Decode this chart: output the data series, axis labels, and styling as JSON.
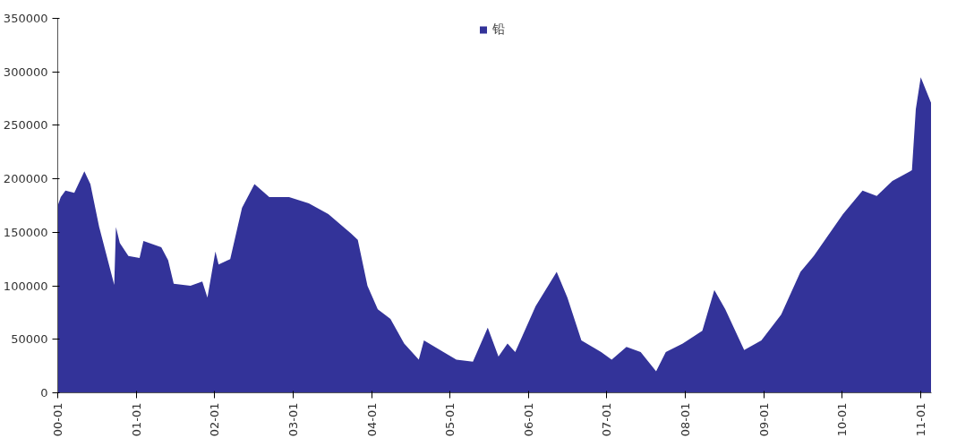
{
  "chart_data": {
    "type": "area",
    "x": [
      "2000-01-01",
      "2000-01-15",
      "2000-02-06",
      "2000-03-18",
      "2000-05-04",
      "2000-06-01",
      "2000-07-12",
      "2000-09-20",
      "2000-09-28",
      "2000-10-16",
      "2000-11-25",
      "2001-01-16",
      "2001-02-03",
      "2001-04-27",
      "2001-05-29",
      "2001-06-24",
      "2001-09-10",
      "2001-11-04",
      "2001-11-28",
      "2002-01-04",
      "2002-01-19",
      "2002-03-14",
      "2002-05-08",
      "2002-07-05",
      "2002-09-12",
      "2002-12-13",
      "2003-03-15",
      "2003-06-14",
      "2003-09-27",
      "2003-10-29",
      "2003-12-13",
      "2004-01-30",
      "2004-03-29",
      "2004-06-01",
      "2004-08-08",
      "2004-09-01",
      "2004-12-01",
      "2005-01-30",
      "2005-04-17",
      "2005-06-25",
      "2005-08-14",
      "2005-09-25",
      "2005-10-31",
      "2006-02-03",
      "2006-05-12",
      "2006-07-01",
      "2006-09-04",
      "2006-12-05",
      "2007-01-23",
      "2007-04-02",
      "2007-06-07",
      "2007-08-18",
      "2007-10-02",
      "2007-12-20",
      "2008-03-20",
      "2008-05-15",
      "2008-07-05",
      "2008-10-01",
      "2008-12-20",
      "2009-03-22",
      "2009-06-20",
      "2009-08-21",
      "2010-01-04",
      "2010-04-05",
      "2010-06-10",
      "2010-08-22",
      "2010-11-21",
      "2010-12-09",
      "2011-01-01",
      "2011-02-18"
    ],
    "series": [
      {
        "name": "铅",
        "color": "#333399",
        "values": [
          175000,
          183000,
          189000,
          187000,
          207000,
          195000,
          155000,
          101000,
          155000,
          140000,
          128000,
          126000,
          142000,
          136000,
          124000,
          102000,
          100000,
          104000,
          89000,
          132000,
          120000,
          125000,
          173000,
          195000,
          183000,
          183000,
          177000,
          167000,
          149000,
          143000,
          100000,
          78000,
          69000,
          46000,
          31000,
          49000,
          38000,
          31000,
          29000,
          61000,
          34000,
          46000,
          38000,
          81000,
          113000,
          89000,
          49000,
          38000,
          31000,
          43000,
          38000,
          20000,
          38000,
          46000,
          58000,
          96000,
          78000,
          40000,
          49000,
          73000,
          113000,
          128000,
          167000,
          189000,
          184000,
          198000,
          208000,
          265000,
          295000,
          271000
        ]
      }
    ],
    "xlim": [
      "2000-01-01",
      "2011-02-20"
    ],
    "xticks": [
      {
        "value": "2000-01",
        "label": "00-01"
      },
      {
        "value": "2001-01",
        "label": "01-01"
      },
      {
        "value": "2002-01",
        "label": "02-01"
      },
      {
        "value": "2003-01",
        "label": "03-01"
      },
      {
        "value": "2004-01",
        "label": "04-01"
      },
      {
        "value": "2005-01",
        "label": "05-01"
      },
      {
        "value": "2006-01",
        "label": "06-01"
      },
      {
        "value": "2007-01",
        "label": "07-01"
      },
      {
        "value": "2008-01",
        "label": "08-01"
      },
      {
        "value": "2009-01",
        "label": "09-01"
      },
      {
        "value": "2010-01",
        "label": "10-01"
      },
      {
        "value": "2011-01",
        "label": "11-01"
      }
    ],
    "ylim": [
      0,
      350000
    ],
    "yticks": [
      0,
      50000,
      100000,
      150000,
      200000,
      250000,
      300000,
      350000
    ],
    "legend": "top"
  }
}
